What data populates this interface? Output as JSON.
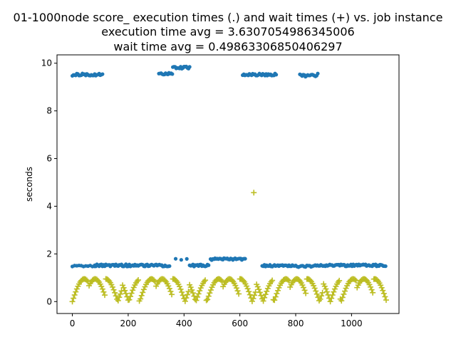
{
  "chart_data": {
    "type": "scatter",
    "title_lines": [
      "01-1000node score_ execution times (.) and wait times (+) vs. job instance",
      "execution time avg = 3.6307054986345006",
      "wait time avg = 0.49863306850406297"
    ],
    "xlabel": "",
    "ylabel": "seconds",
    "xlim": [
      -55,
      1170
    ],
    "ylim": [
      -0.5,
      10.35
    ],
    "xticks": [
      0,
      200,
      400,
      600,
      800,
      1000
    ],
    "yticks": [
      0,
      2,
      4,
      6,
      8,
      10
    ],
    "grid": false,
    "colors": {
      "execution": "#1f77b4",
      "wait": "#bcbd22"
    },
    "series": [
      {
        "marker": "dot",
        "segments": [
          {
            "x0": 0,
            "x1": 110,
            "y": 9.52,
            "jitter": 0.05,
            "step": 4
          },
          {
            "x0": 310,
            "x1": 360,
            "y": 9.55,
            "jitter": 0.05,
            "step": 4
          },
          {
            "x0": 360,
            "x1": 420,
            "y": 9.82,
            "jitter": 0.05,
            "step": 4
          },
          {
            "x0": 610,
            "x1": 730,
            "y": 9.53,
            "jitter": 0.05,
            "step": 4
          },
          {
            "x0": 815,
            "x1": 880,
            "y": 9.5,
            "jitter": 0.07,
            "step": 4
          },
          {
            "x0": 0,
            "x1": 80,
            "y": 1.5,
            "jitter": 0.03,
            "step": 8
          },
          {
            "x0": 80,
            "x1": 350,
            "y": 1.52,
            "jitter": 0.05,
            "step": 4
          },
          {
            "x0": 370,
            "x1": 410,
            "y": 1.78,
            "jitter": 0.03,
            "step": 20
          },
          {
            "x0": 420,
            "x1": 490,
            "y": 1.52,
            "jitter": 0.05,
            "step": 4
          },
          {
            "x0": 495,
            "x1": 620,
            "y": 1.78,
            "jitter": 0.04,
            "step": 4
          },
          {
            "x0": 680,
            "x1": 790,
            "y": 1.5,
            "jitter": 0.04,
            "step": 4
          },
          {
            "x0": 790,
            "x1": 870,
            "y": 1.48,
            "jitter": 0.04,
            "step": 5
          },
          {
            "x0": 870,
            "x1": 1125,
            "y": 1.52,
            "jitter": 0.04,
            "step": 4
          }
        ]
      },
      {
        "marker": "plus",
        "sawtooth": {
          "x0": 0,
          "x1": 1125,
          "step": 4,
          "ymin": 0.0,
          "ymax": 0.95
        },
        "outliers": [
          {
            "x": 650,
            "y": 4.57
          }
        ]
      }
    ]
  }
}
